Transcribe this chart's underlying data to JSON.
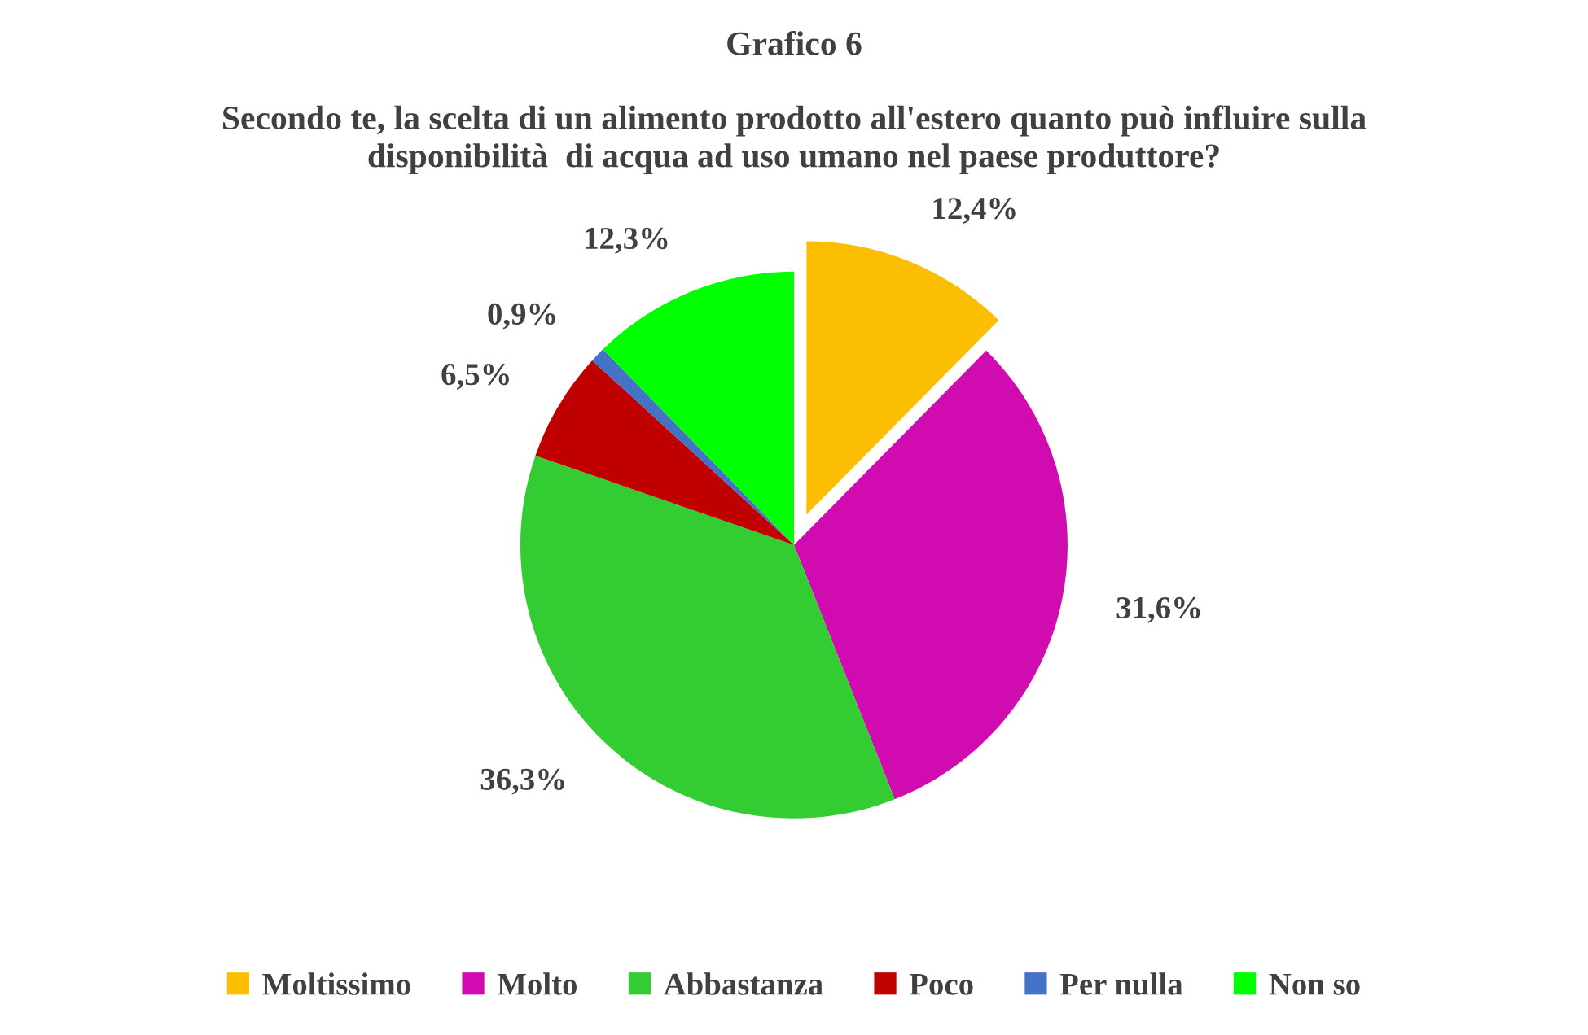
{
  "chart_data": {
    "type": "pie",
    "title": "Grafico 6",
    "subtitle": "Secondo te, la scelta di un alimento prodotto all'estero quanto può influire sulla\ndisponibilità  di acqua ad uso umano nel paese produttore?",
    "categories": [
      "Moltissimo",
      "Molto",
      "Abbastanza",
      "Poco",
      "Per nulla",
      "Non so"
    ],
    "values": [
      12.4,
      31.6,
      36.3,
      6.5,
      0.9,
      12.3
    ],
    "value_labels": [
      "12,4%",
      "31,6%",
      "36,3%",
      "6,5%",
      "0,9%",
      "12,3%"
    ],
    "colors": [
      "#fbbe00",
      "#d00bb0",
      "#33cc33",
      "#c00000",
      "#4472c4",
      "#00ff00"
    ],
    "legend": "bottom"
  }
}
